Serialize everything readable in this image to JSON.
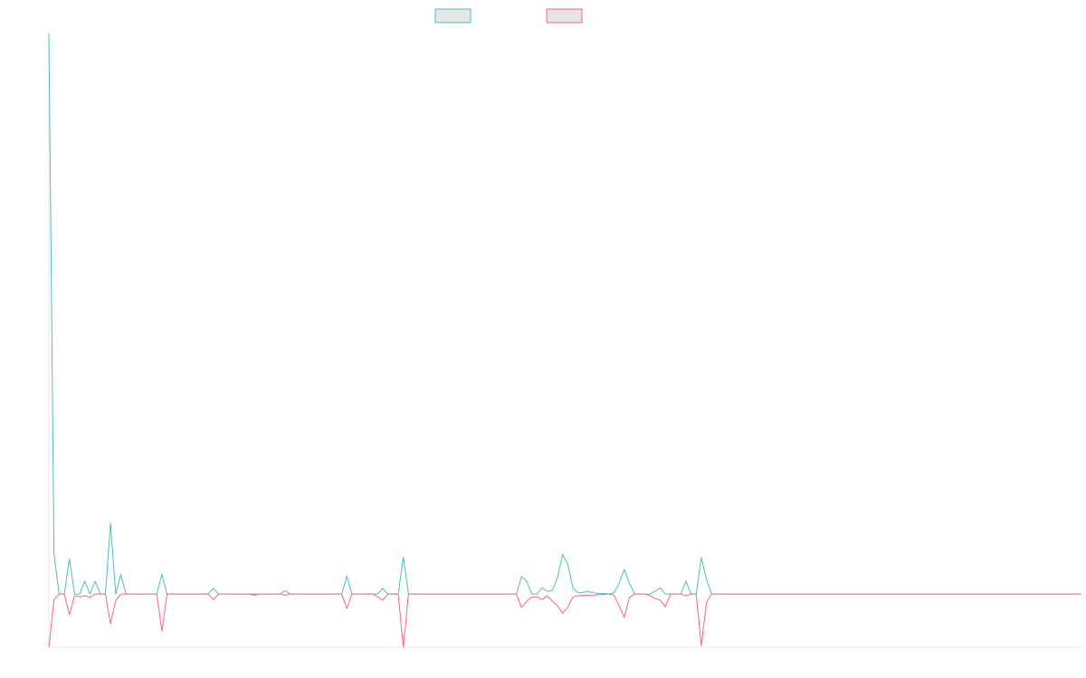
{
  "chart_data": {
    "type": "line",
    "ylim": [
      -9.5,
      100
    ],
    "series": [
      {
        "color": "#4bc0c0",
        "values": [
          100,
          7.1,
          0,
          0,
          6.3,
          0,
          0,
          2.3,
          0,
          2.3,
          0,
          0,
          12.6,
          0,
          3.5,
          0,
          0,
          0,
          0,
          0,
          0,
          0,
          3.5,
          0,
          0,
          0,
          0,
          0,
          0,
          0,
          0,
          0,
          1,
          0,
          0,
          0,
          0,
          0,
          0,
          0,
          0,
          0,
          0,
          0,
          0,
          0,
          0.6,
          0,
          0,
          0,
          0,
          0,
          0,
          0,
          0,
          0,
          0,
          0,
          3.2,
          0,
          0,
          0,
          0,
          0,
          0,
          1,
          0,
          0,
          0,
          6.6,
          0,
          0,
          0,
          0,
          0,
          0,
          0,
          0,
          0,
          0,
          0,
          0,
          0,
          0,
          0,
          0,
          0,
          0,
          0,
          0,
          0,
          0,
          3.1,
          2.3,
          0,
          0,
          1.1,
          0.5,
          0.6,
          2.9,
          7.1,
          5.3,
          1.1,
          0.2,
          0.3,
          0.5,
          0.2,
          0.1,
          0.1,
          0,
          0.2,
          1.9,
          4.4,
          1.9,
          0,
          0,
          0,
          0,
          0.5,
          1.1,
          0,
          0,
          0,
          0,
          2.3,
          0,
          0,
          6.5,
          2.6,
          0,
          0,
          0,
          0,
          0,
          0,
          0,
          0,
          0,
          0,
          0,
          0,
          0,
          0,
          0,
          0,
          0,
          0,
          0,
          0,
          0,
          0,
          0,
          0,
          0,
          0,
          0,
          0,
          0,
          0,
          0,
          0,
          0,
          0,
          0,
          0,
          0,
          0,
          0,
          0,
          0,
          0,
          0,
          0,
          0,
          0,
          0,
          0,
          0,
          0,
          0,
          0,
          0,
          0,
          0,
          0,
          0,
          0,
          0,
          0,
          0,
          0,
          0,
          0,
          0,
          0,
          0,
          0,
          0,
          0,
          0,
          0,
          0
        ]
      },
      {
        "color": "#ff6384",
        "values": [
          -9.5,
          -1,
          0,
          0,
          -3.7,
          -0.3,
          -0.5,
          -0.3,
          -0.6,
          0,
          0,
          0,
          -5.3,
          -1.2,
          0,
          0,
          0,
          0,
          0,
          0,
          0,
          0,
          -6.6,
          0,
          0,
          0,
          0,
          0,
          0,
          0,
          0,
          0,
          -1,
          0,
          0,
          0,
          0,
          0,
          0,
          0,
          -0.2,
          0,
          0,
          0,
          0,
          0,
          -0.2,
          0,
          0,
          0,
          0,
          0,
          0,
          0,
          0,
          0,
          0,
          0,
          -2.6,
          0,
          0,
          0,
          0,
          0,
          -0.5,
          -1.1,
          0,
          0,
          0,
          -9.5,
          0,
          0,
          0,
          0,
          0,
          0,
          0,
          0,
          0,
          0,
          0,
          0,
          0,
          0,
          0,
          0,
          0,
          0,
          0,
          0,
          0,
          0,
          -2.4,
          -1.3,
          -0.5,
          -0.5,
          -1,
          -0.3,
          -1.3,
          -2.1,
          -3.4,
          -2.4,
          -0.5,
          -0.3,
          -0.2,
          -0.2,
          -0.2,
          -0.1,
          -0.1,
          0,
          -0.2,
          -2.1,
          -4.2,
          -0.6,
          0,
          0,
          0,
          -0.3,
          -0.8,
          -1.1,
          -2.3,
          0,
          0,
          0,
          -0.3,
          0,
          0,
          -9.2,
          -1.5,
          0,
          0,
          0,
          0,
          0,
          0,
          0,
          0,
          0,
          0,
          0,
          0,
          0,
          0,
          0,
          0,
          0,
          0,
          0,
          0,
          0,
          0,
          0,
          0,
          0,
          0,
          0,
          0,
          0,
          0,
          0,
          0,
          0,
          0,
          0,
          0,
          0,
          0,
          0,
          0,
          0,
          0,
          0,
          0,
          0,
          0,
          0,
          0,
          0,
          0,
          0,
          0,
          0,
          0,
          0,
          0,
          0,
          0,
          0,
          0,
          0,
          0,
          0,
          0,
          0,
          0,
          0,
          0,
          0,
          0,
          0,
          0,
          0
        ]
      }
    ]
  }
}
